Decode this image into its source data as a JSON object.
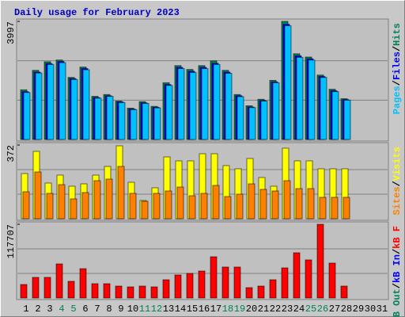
{
  "chart_data": {
    "type": "bar",
    "title": "Daily usage for February 2023",
    "categories": [
      "1",
      "2",
      "3",
      "4",
      "5",
      "6",
      "7",
      "8",
      "9",
      "10",
      "11",
      "12",
      "13",
      "14",
      "15",
      "16",
      "17",
      "18",
      "19",
      "20",
      "21",
      "22",
      "23",
      "24",
      "25",
      "26",
      "27",
      "28",
      "29",
      "30",
      "31"
    ],
    "highlight_indices": [
      3,
      4,
      10,
      11,
      17,
      18,
      24,
      25
    ],
    "highlight_color": "#00805c",
    "separator": "/",
    "panels": [
      {
        "ylim": [
          0,
          3997
        ],
        "yticks": [
          3997
        ],
        "series": [
          {
            "name": "Hits",
            "color": "#00805c",
            "values": [
              1680,
              2340,
              2630,
              2690,
              2100,
              2450,
              1460,
              1520,
              1300,
              1060,
              1280,
              1120,
              1920,
              2500,
              2370,
              2500,
              2660,
              2340,
              1520,
              1140,
              1360,
              2000,
              3997,
              2900,
              2790,
              2180,
              1700,
              1380,
              null,
              null,
              null
            ]
          },
          {
            "name": "Files",
            "color": "#0000ff",
            "values": [
              1620,
              2280,
              2570,
              2640,
              2060,
              2400,
              1420,
              1480,
              1270,
              1030,
              1240,
              1090,
              1860,
              2440,
              2310,
              2440,
              2580,
              2280,
              1480,
              1100,
              1320,
              1950,
              3900,
              2830,
              2730,
              2130,
              1650,
              1350,
              null,
              null,
              null
            ]
          },
          {
            "name": "Pages",
            "color": "#00c0ff",
            "values": [
              1590,
              2250,
              2540,
              2600,
              2030,
              2360,
              1400,
              1460,
              1250,
              1010,
              1220,
              1070,
              1830,
              2400,
              2270,
              2400,
              2540,
              2240,
              1450,
              1080,
              1300,
              1920,
              3850,
              2780,
              2690,
              2100,
              1620,
              1330,
              null,
              null,
              null
            ]
          }
        ]
      },
      {
        "ylim": [
          0,
          372
        ],
        "yticks": [
          372
        ],
        "series": [
          {
            "name": "Visits",
            "color": "#ffff00",
            "values": [
              228,
              340,
              180,
              220,
              164,
              176,
              220,
              264,
              368,
              184,
              92,
              156,
              312,
              292,
              292,
              328,
              328,
              268,
              252,
              304,
              208,
              164,
              356,
              292,
              292,
              252,
              252,
              252,
              null,
              null,
              null
            ]
          },
          {
            "name": "Sites",
            "color": "#ff8000",
            "values": [
              136,
              236,
              128,
              172,
              100,
              132,
              192,
              200,
              264,
              128,
              88,
              128,
              140,
              160,
              116,
              128,
              168,
              112,
              124,
              176,
              148,
              140,
              192,
              152,
              152,
              108,
              108,
              108,
              null,
              null,
              null
            ]
          }
        ]
      },
      {
        "ylim": [
          0,
          117707
        ],
        "yticks": [
          117707
        ],
        "series": [
          {
            "name": "kB F",
            "color": "#ff0000",
            "values": [
              21500,
              32900,
              32900,
              54400,
              26600,
              46800,
              22800,
              22800,
              19000,
              17700,
              19000,
              17700,
              29100,
              36700,
              39200,
              43000,
              65800,
              49400,
              49400,
              16500,
              19000,
              29100,
              48100,
              72200,
              60800,
              117707,
              55700,
              19000,
              null,
              null,
              null
            ]
          },
          {
            "name": "kB In",
            "color": "#0000ff",
            "values": [
              null,
              null,
              null,
              null,
              null,
              null,
              null,
              null,
              null,
              null,
              null,
              null,
              null,
              null,
              null,
              null,
              null,
              null,
              null,
              null,
              null,
              null,
              null,
              null,
              null,
              null,
              null,
              null,
              null,
              null,
              null
            ]
          },
          {
            "name": "kB Out",
            "color": "#00805c",
            "values": [
              null,
              null,
              null,
              null,
              null,
              null,
              null,
              null,
              null,
              null,
              null,
              null,
              null,
              null,
              null,
              null,
              null,
              null,
              null,
              null,
              null,
              null,
              null,
              null,
              null,
              null,
              null,
              null,
              null,
              null,
              null
            ]
          }
        ]
      }
    ]
  }
}
